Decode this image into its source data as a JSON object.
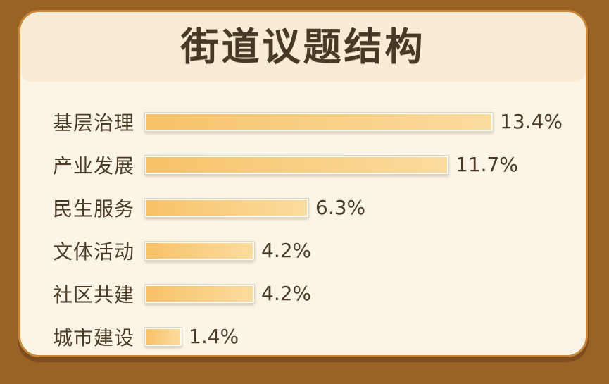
{
  "page_title": "街道议题结构",
  "chart_data": {
    "type": "bar",
    "orientation": "horizontal",
    "title": "街道议题结构",
    "categories": [
      "基层治理",
      "产业发展",
      "民生服务",
      "文体活动",
      "社区共建",
      "城市建设"
    ],
    "values": [
      13.4,
      11.7,
      6.3,
      4.2,
      4.2,
      1.4
    ],
    "value_labels": [
      "13.4%",
      "11.7%",
      "6.3%",
      "4.2%",
      "4.2%",
      "1.4%"
    ],
    "xlabel": "",
    "ylabel": "",
    "xlim": [
      0,
      13.4
    ],
    "grid": false,
    "legend": false,
    "data_labels_position": "right-of-bar"
  },
  "colors": {
    "frame_brown": "#9A6326",
    "frame_shadow_brown": "#7D4D1E",
    "card_outline_orange": "#C8883C",
    "card_background": "#FCF4E6",
    "header_background": "#F8ECD5",
    "text_brown": "#4A3A26",
    "title_brown": "#473926",
    "bar_gradient_start": "#F7C268",
    "bar_gradient_end": "#FBDC9E",
    "bar_border": "#FDFBF2"
  }
}
